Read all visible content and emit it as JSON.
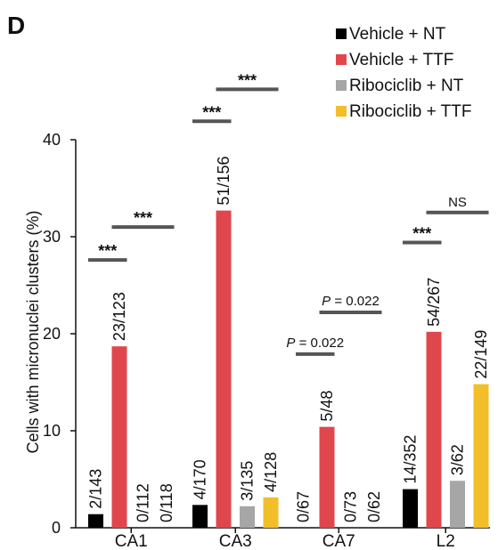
{
  "panel_letter": "D",
  "chart_data": {
    "type": "bar",
    "categories": [
      "CA1",
      "CA3",
      "CA7",
      "L2"
    ],
    "ylabel": "Cells with micronuclei clusters (%)",
    "xlabel": "",
    "ylim": [
      0,
      40
    ],
    "yticks": [
      "0",
      "10",
      "20",
      "30",
      "40"
    ],
    "legend_position": "top-right",
    "series": [
      {
        "name": "Vehicle + NT",
        "color": "#000000",
        "values": [
          1.4,
          2.35,
          0,
          3.98
        ],
        "labels": [
          "2/143",
          "4/170",
          "0/67",
          "14/352"
        ]
      },
      {
        "name": "Vehicle + TTF",
        "color": "#e0474c",
        "values": [
          18.7,
          32.7,
          10.4,
          20.2
        ],
        "labels": [
          "23/123",
          "51/156",
          "5/48",
          "54/267"
        ]
      },
      {
        "name": "Ribociclib + NT",
        "color": "#a6a6a6",
        "values": [
          0,
          2.22,
          0,
          4.84
        ],
        "labels": [
          "0/112",
          "3/135",
          "0/73",
          "3/62"
        ]
      },
      {
        "name": "Ribociclib + TTF",
        "color": "#f2be2a",
        "values": [
          0,
          3.13,
          0,
          14.8
        ],
        "labels": [
          "0/118",
          "4/128",
          "0/62",
          "22/149"
        ]
      }
    ],
    "significance": [
      {
        "category": 0,
        "from_series": 0,
        "to_series": 1,
        "y": 27.6,
        "label": "***"
      },
      {
        "category": 0,
        "from_series": 1,
        "to_series": 3,
        "y": 31.0,
        "label": "***"
      },
      {
        "category": 1,
        "from_series": 0,
        "to_series": 1,
        "y": 41.9,
        "label": "***"
      },
      {
        "category": 1,
        "from_series": 1,
        "to_series": 3,
        "y": 45.2,
        "label": "***"
      },
      {
        "category": 2,
        "from_series": 0,
        "to_series": 1,
        "y": 17.9,
        "label_italic": "P",
        "label": " = 0.022"
      },
      {
        "category": 2,
        "from_series": 1,
        "to_series": 3,
        "y": 22.2,
        "label_italic": "P",
        "label": " = 0.022"
      },
      {
        "category": 3,
        "from_series": 0,
        "to_series": 1,
        "y": 29.4,
        "label": "***"
      },
      {
        "category": 3,
        "from_series": 1,
        "to_series": 3,
        "y": 32.5,
        "label": "NS",
        "plain": true
      }
    ]
  }
}
